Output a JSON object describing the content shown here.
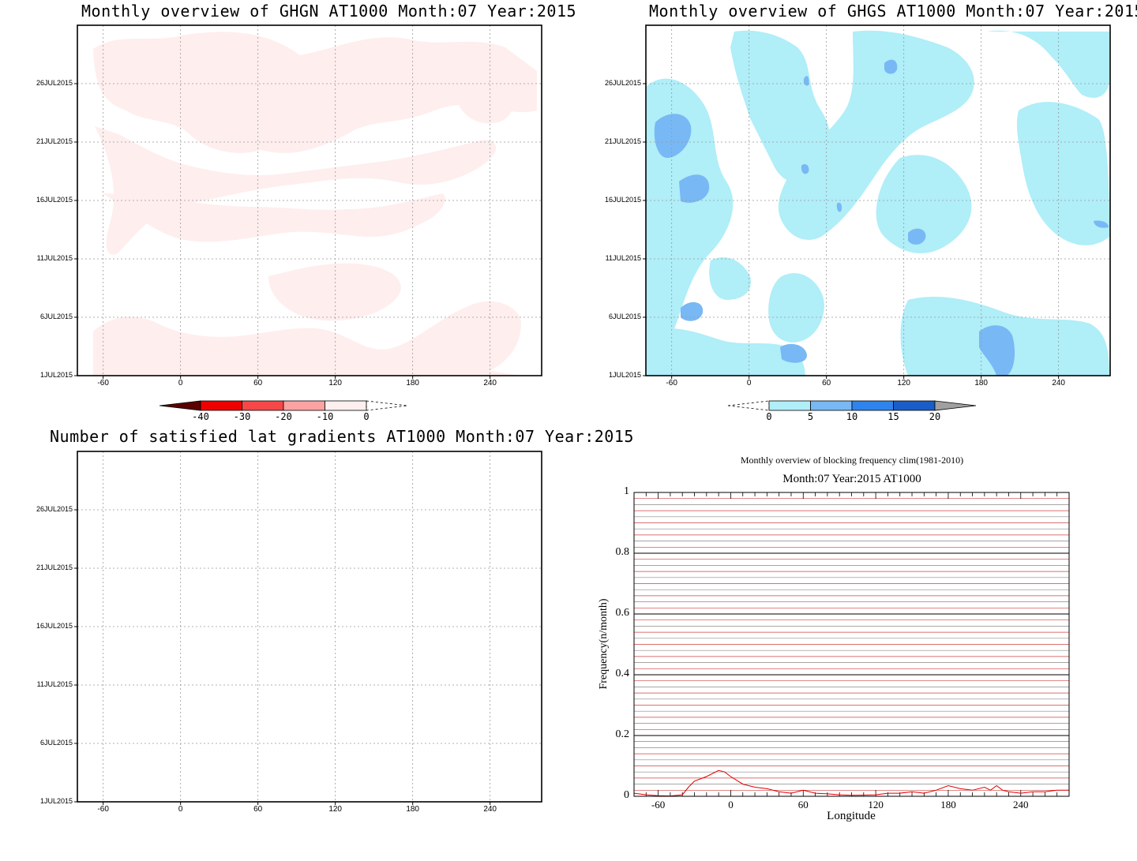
{
  "chart_data": [
    {
      "type": "heatmap",
      "title": "Monthly overview of GHGN AT1000 Month:07 Year:2015",
      "x_ticks": [
        "-60",
        "0",
        "60",
        "120",
        "180",
        "240"
      ],
      "y_ticks": [
        "1JUL2015",
        "6JUL2015",
        "11JUL2015",
        "16JUL2015",
        "21JUL2015",
        "26JUL2015"
      ],
      "xlim": [
        -80,
        280
      ],
      "grid": true,
      "colorbar": {
        "levels": [
          "-40",
          "-30",
          "-20",
          "-10",
          "0"
        ],
        "colors": [
          "#5a0000",
          "#ee0000",
          "#f64848",
          "#fca2a2",
          "#ffeeee"
        ]
      }
    },
    {
      "type": "heatmap",
      "title": "Monthly overview of GHGS AT1000 Month:07 Year:2015",
      "x_ticks": [
        "-60",
        "0",
        "60",
        "120",
        "180",
        "240"
      ],
      "y_ticks": [
        "1JUL2015",
        "6JUL2015",
        "11JUL2015",
        "16JUL2015",
        "21JUL2015",
        "26JUL2015"
      ],
      "xlim": [
        -80,
        280
      ],
      "grid": true,
      "colorbar": {
        "levels": [
          "0",
          "5",
          "10",
          "15",
          "20"
        ],
        "colors": [
          "#b0eef8",
          "#78b8f5",
          "#2e84ec",
          "#1a5dc8",
          "#a0a0a0"
        ]
      }
    },
    {
      "type": "heatmap",
      "title": "Number of satisfied lat gradients AT1000 Month:07 Year:2015",
      "x_ticks": [
        "-60",
        "0",
        "60",
        "120",
        "180",
        "240"
      ],
      "y_ticks": [
        "1JUL2015",
        "6JUL2015",
        "11JUL2015",
        "16JUL2015",
        "21JUL2015",
        "26JUL2015"
      ],
      "xlim": [
        -80,
        280
      ],
      "grid": true
    },
    {
      "type": "line",
      "title": "Monthly overview of blocking frequency clim(1981-2010)",
      "subtitle": "Month:07 Year:2015  AT1000",
      "xlabel": "Longitude",
      "ylabel": "Frequency(n/month)",
      "x_ticks": [
        "-60",
        "0",
        "60",
        "120",
        "180",
        "240"
      ],
      "y_ticks": [
        "0",
        "0.2",
        "0.4",
        "0.6",
        "0.8",
        "1"
      ],
      "xlim": [
        -80,
        280
      ],
      "ylim": [
        0,
        1
      ],
      "series": [
        {
          "color": "#e00000",
          "x": [
            -80,
            -70,
            -60,
            -50,
            -40,
            -35,
            -30,
            -20,
            -10,
            -5,
            0,
            10,
            20,
            30,
            40,
            50,
            60,
            70,
            80,
            90,
            100,
            110,
            120,
            130,
            140,
            150,
            160,
            170,
            180,
            190,
            200,
            210,
            215,
            220,
            225,
            230,
            240,
            250,
            260,
            270,
            280
          ],
          "y": [
            0.01,
            0.005,
            0.002,
            0.001,
            0.005,
            0.03,
            0.05,
            0.065,
            0.085,
            0.08,
            0.065,
            0.04,
            0.03,
            0.025,
            0.015,
            0.01,
            0.02,
            0.01,
            0.008,
            0.005,
            0.003,
            0.004,
            0.005,
            0.01,
            0.01,
            0.015,
            0.01,
            0.02,
            0.035,
            0.025,
            0.02,
            0.03,
            0.02,
            0.035,
            0.02,
            0.015,
            0.01,
            0.015,
            0.015,
            0.02,
            0.02
          ]
        }
      ]
    }
  ]
}
